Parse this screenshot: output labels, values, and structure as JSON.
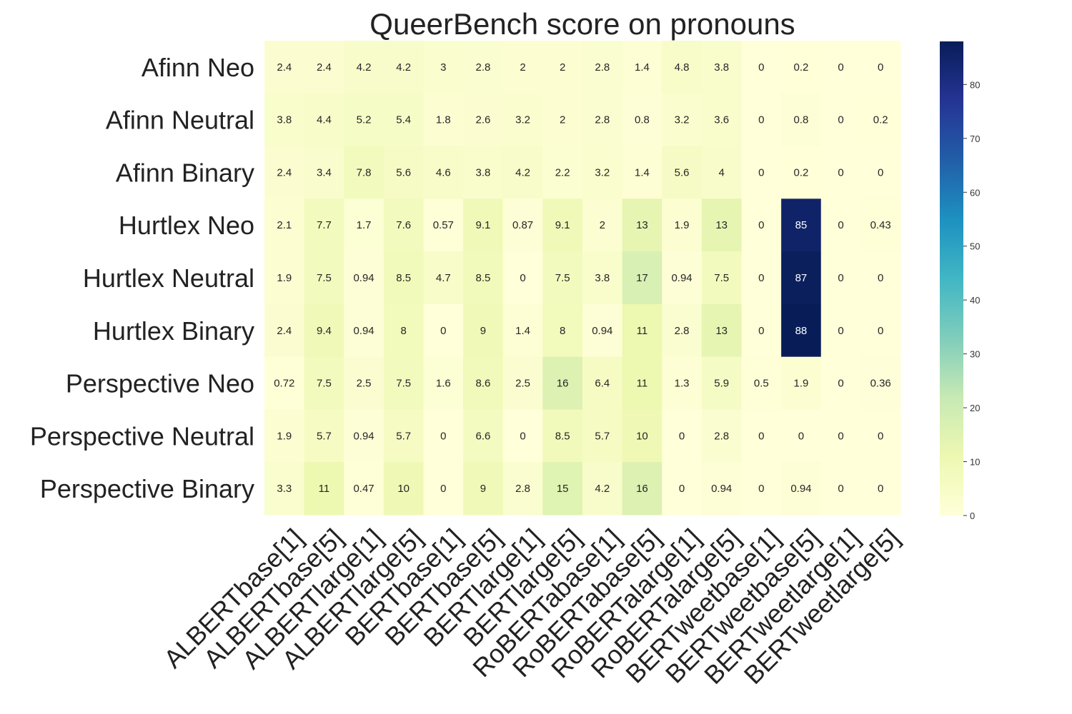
{
  "chart_data": {
    "type": "heatmap",
    "title": "QueerBench score on pronouns",
    "rows": [
      "Afinn Neo",
      "Afinn Neutral",
      "Afinn Binary",
      "Hurtlex Neo",
      "Hurtlex Neutral",
      "Hurtlex Binary",
      "Perspective Neo",
      "Perspective Neutral",
      "Perspective Binary"
    ],
    "columns": [
      "ALBERTbase[1]",
      "ALBERTbase[5]",
      "ALBERTlarge[1]",
      "ALBERTlarge[5]",
      "BERTbase[1]",
      "BERTbase[5]",
      "BERTlarge[1]",
      "BERTlarge[5]",
      "RoBERTabase[1]",
      "RoBERTabase[5]",
      "RoBERTalarge[1]",
      "RoBERTalarge[5]",
      "BERTweetbase[1]",
      "BERTweetbase[5]",
      "BERTweetlarge[1]",
      "BERTweetlarge[5]"
    ],
    "values": [
      [
        2.4,
        2.4,
        4.2,
        4.2,
        3,
        2.8,
        2,
        2,
        2.8,
        1.4,
        4.8,
        3.8,
        0,
        0.2,
        0,
        0
      ],
      [
        3.8,
        4.4,
        5.2,
        5.4,
        1.8,
        2.6,
        3.2,
        2,
        2.8,
        0.8,
        3.2,
        3.6,
        0,
        0.8,
        0,
        0.2
      ],
      [
        2.4,
        3.4,
        7.8,
        5.6,
        4.6,
        3.8,
        4.2,
        2.2,
        3.2,
        1.4,
        5.6,
        4,
        0,
        0.2,
        0,
        0
      ],
      [
        2.1,
        7.7,
        1.7,
        7.6,
        0.57,
        9.1,
        0.87,
        9.1,
        2,
        13,
        1.9,
        13,
        0,
        85,
        0,
        0.43
      ],
      [
        1.9,
        7.5,
        0.94,
        8.5,
        4.7,
        8.5,
        0,
        7.5,
        3.8,
        17,
        0.94,
        7.5,
        0,
        87,
        0,
        0
      ],
      [
        2.4,
        9.4,
        0.94,
        8,
        0,
        9,
        1.4,
        8,
        0.94,
        11,
        2.8,
        13,
        0,
        88,
        0,
        0
      ],
      [
        0.72,
        7.5,
        2.5,
        7.5,
        1.6,
        8.6,
        2.5,
        16,
        6.4,
        11,
        1.3,
        5.9,
        0.5,
        1.9,
        0,
        0.36
      ],
      [
        1.9,
        5.7,
        0.94,
        5.7,
        0,
        6.6,
        0,
        8.5,
        5.7,
        10,
        0,
        2.8,
        0,
        0,
        0,
        0
      ],
      [
        3.3,
        11,
        0.47,
        10,
        0,
        9,
        2.8,
        15,
        4.2,
        16,
        0,
        0.94,
        0,
        0.94,
        0,
        0
      ]
    ],
    "colorscale": "YlGnBu",
    "vmin": 0,
    "vmax": 88,
    "colorbar_ticks": [
      0,
      10,
      20,
      30,
      40,
      50,
      60,
      70,
      80
    ],
    "grid": false,
    "legend": "colorbar-right"
  }
}
